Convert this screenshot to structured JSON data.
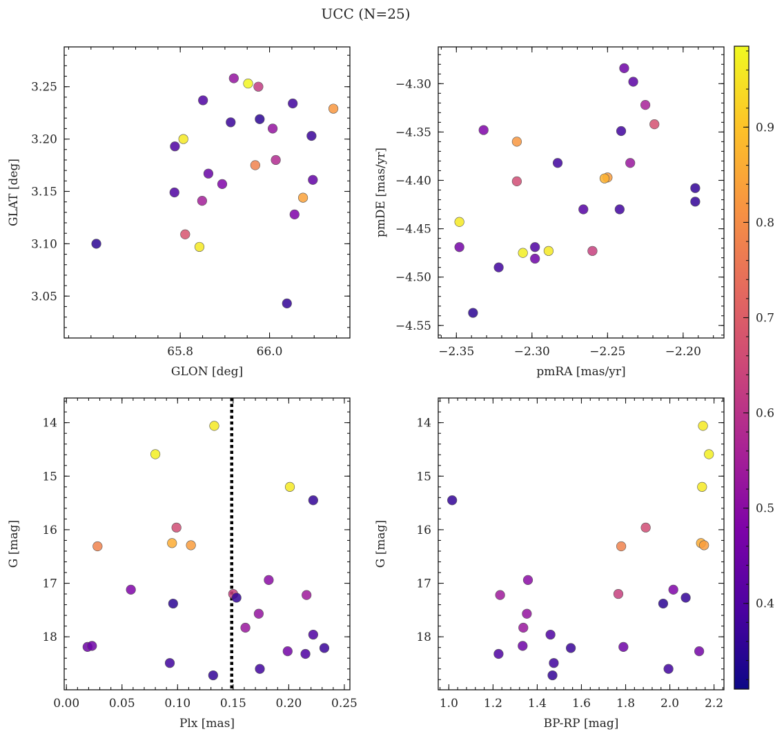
{
  "figure": {
    "title": "UCC (N=25)"
  },
  "colorbar": {
    "min": 0.31,
    "max": 0.985,
    "ticks": [
      "0.4",
      "0.5",
      "0.6",
      "0.7",
      "0.8",
      "0.9"
    ],
    "cmap": "plasma"
  },
  "chart_data": [
    {
      "type": "scatter",
      "xlabel": "GLON [deg]",
      "ylabel": "GLAT [deg]",
      "xlim": [
        65.54,
        66.18
      ],
      "ylim": [
        3.01,
        3.288
      ],
      "xticks": [
        "65.8",
        "66.0"
      ],
      "yticks": [
        "3.05",
        "3.10",
        "3.15",
        "3.20",
        "3.25"
      ],
      "points": [
        {
          "x": 65.612,
          "y": 3.1,
          "c": 0.35
        },
        {
          "x": 65.787,
          "y": 3.149,
          "c": 0.4
        },
        {
          "x": 65.788,
          "y": 3.193,
          "c": 0.4
        },
        {
          "x": 65.807,
          "y": 3.2,
          "c": 0.96
        },
        {
          "x": 65.811,
          "y": 3.109,
          "c": 0.68
        },
        {
          "x": 65.843,
          "y": 3.097,
          "c": 0.96
        },
        {
          "x": 65.849,
          "y": 3.141,
          "c": 0.55
        },
        {
          "x": 65.851,
          "y": 3.237,
          "c": 0.4
        },
        {
          "x": 65.863,
          "y": 3.167,
          "c": 0.44
        },
        {
          "x": 65.894,
          "y": 3.157,
          "c": 0.48
        },
        {
          "x": 65.913,
          "y": 3.216,
          "c": 0.37
        },
        {
          "x": 65.92,
          "y": 3.258,
          "c": 0.52
        },
        {
          "x": 65.952,
          "y": 3.253,
          "c": 0.98
        },
        {
          "x": 65.968,
          "y": 3.175,
          "c": 0.78
        },
        {
          "x": 65.975,
          "y": 3.25,
          "c": 0.62
        },
        {
          "x": 65.978,
          "y": 3.219,
          "c": 0.35
        },
        {
          "x": 66.007,
          "y": 3.21,
          "c": 0.52
        },
        {
          "x": 66.014,
          "y": 3.18,
          "c": 0.58
        },
        {
          "x": 66.039,
          "y": 3.043,
          "c": 0.36
        },
        {
          "x": 66.052,
          "y": 3.234,
          "c": 0.38
        },
        {
          "x": 66.056,
          "y": 3.128,
          "c": 0.48
        },
        {
          "x": 66.075,
          "y": 3.144,
          "c": 0.84
        },
        {
          "x": 66.094,
          "y": 3.203,
          "c": 0.37
        },
        {
          "x": 66.097,
          "y": 3.161,
          "c": 0.43
        },
        {
          "x": 66.143,
          "y": 3.229,
          "c": 0.82
        }
      ]
    },
    {
      "type": "scatter",
      "xlabel": "pmRA [mas/yr]",
      "ylabel": "pmDE [mas/yr]",
      "xlim": [
        -2.362,
        -2.173
      ],
      "ylim": [
        -4.563,
        -4.262
      ],
      "xticks": [
        "−2.35",
        "−2.30",
        "−2.25",
        "−2.20"
      ],
      "yticks": [
        "−4.30",
        "−4.35",
        "−4.40",
        "−4.45",
        "−4.50",
        "−4.55"
      ],
      "points": [
        {
          "x": -2.339,
          "y": -4.537,
          "c": 0.35
        },
        {
          "x": -2.322,
          "y": -4.49,
          "c": 0.38
        },
        {
          "x": -2.348,
          "y": -4.469,
          "c": 0.46
        },
        {
          "x": -2.348,
          "y": -4.443,
          "c": 0.96
        },
        {
          "x": -2.332,
          "y": -4.348,
          "c": 0.48
        },
        {
          "x": -2.31,
          "y": -4.36,
          "c": 0.82
        },
        {
          "x": -2.31,
          "y": -4.401,
          "c": 0.66
        },
        {
          "x": -2.306,
          "y": -4.475,
          "c": 0.97
        },
        {
          "x": -2.298,
          "y": -4.469,
          "c": 0.4
        },
        {
          "x": -2.298,
          "y": -4.481,
          "c": 0.45
        },
        {
          "x": -2.289,
          "y": -4.473,
          "c": 0.96
        },
        {
          "x": -2.283,
          "y": -4.382,
          "c": 0.38
        },
        {
          "x": -2.266,
          "y": -4.43,
          "c": 0.41
        },
        {
          "x": -2.26,
          "y": -4.473,
          "c": 0.63
        },
        {
          "x": -2.25,
          "y": -4.397,
          "c": 0.83
        },
        {
          "x": -2.252,
          "y": -4.398,
          "c": 0.87
        },
        {
          "x": -2.242,
          "y": -4.43,
          "c": 0.38
        },
        {
          "x": -2.241,
          "y": -4.349,
          "c": 0.38
        },
        {
          "x": -2.239,
          "y": -4.284,
          "c": 0.45
        },
        {
          "x": -2.235,
          "y": -4.382,
          "c": 0.53
        },
        {
          "x": -2.233,
          "y": -4.298,
          "c": 0.42
        },
        {
          "x": -2.225,
          "y": -4.322,
          "c": 0.56
        },
        {
          "x": -2.219,
          "y": -4.342,
          "c": 0.67
        },
        {
          "x": -2.192,
          "y": -4.408,
          "c": 0.36
        },
        {
          "x": -2.192,
          "y": -4.422,
          "c": 0.36
        }
      ]
    },
    {
      "type": "scatter",
      "xlabel": "Plx [mas]",
      "ylabel": "G [mag]",
      "xlim": [
        -0.002,
        0.255
      ],
      "ylim": [
        18.99,
        13.54
      ],
      "invert_y": true,
      "xticks": [
        "0.00",
        "0.05",
        "0.10",
        "0.15",
        "0.20",
        "0.25"
      ],
      "yticks": [
        "14",
        "15",
        "16",
        "17",
        "18"
      ],
      "vline": {
        "x": 0.1487,
        "style": "dotted"
      },
      "points": [
        {
          "x": 0.019,
          "y": 18.19,
          "c": 0.45
        },
        {
          "x": 0.023,
          "y": 18.17,
          "c": 0.45
        },
        {
          "x": 0.028,
          "y": 16.31,
          "c": 0.78
        },
        {
          "x": 0.058,
          "y": 17.12,
          "c": 0.48
        },
        {
          "x": 0.08,
          "y": 14.59,
          "c": 0.97
        },
        {
          "x": 0.093,
          "y": 18.49,
          "c": 0.38
        },
        {
          "x": 0.095,
          "y": 16.25,
          "c": 0.86
        },
        {
          "x": 0.096,
          "y": 17.38,
          "c": 0.35
        },
        {
          "x": 0.099,
          "y": 15.96,
          "c": 0.66
        },
        {
          "x": 0.112,
          "y": 16.29,
          "c": 0.83
        },
        {
          "x": 0.132,
          "y": 18.72,
          "c": 0.36
        },
        {
          "x": 0.133,
          "y": 14.06,
          "c": 0.96
        },
        {
          "x": 0.15,
          "y": 17.2,
          "c": 0.63
        },
        {
          "x": 0.153,
          "y": 17.27,
          "c": 0.36
        },
        {
          "x": 0.161,
          "y": 17.83,
          "c": 0.53
        },
        {
          "x": 0.173,
          "y": 17.57,
          "c": 0.52
        },
        {
          "x": 0.174,
          "y": 18.6,
          "c": 0.38
        },
        {
          "x": 0.182,
          "y": 16.94,
          "c": 0.5
        },
        {
          "x": 0.199,
          "y": 18.27,
          "c": 0.46
        },
        {
          "x": 0.201,
          "y": 15.2,
          "c": 0.96
        },
        {
          "x": 0.215,
          "y": 18.32,
          "c": 0.4
        },
        {
          "x": 0.216,
          "y": 17.22,
          "c": 0.54
        },
        {
          "x": 0.222,
          "y": 17.96,
          "c": 0.4
        },
        {
          "x": 0.222,
          "y": 15.45,
          "c": 0.36
        },
        {
          "x": 0.232,
          "y": 18.21,
          "c": 0.37
        }
      ]
    },
    {
      "type": "scatter",
      "xlabel": "BP-RP [mag]",
      "ylabel": "G [mag]",
      "xlim": [
        0.952,
        2.245
      ],
      "ylim": [
        18.99,
        13.54
      ],
      "invert_y": true,
      "xticks": [
        "1.0",
        "1.2",
        "1.4",
        "1.6",
        "1.8",
        "2.0",
        "2.2"
      ],
      "yticks": [
        "14",
        "15",
        "16",
        "17",
        "18"
      ],
      "points": [
        {
          "x": 1.015,
          "y": 15.45,
          "c": 0.36
        },
        {
          "x": 1.225,
          "y": 18.32,
          "c": 0.4
        },
        {
          "x": 1.232,
          "y": 17.22,
          "c": 0.54
        },
        {
          "x": 1.334,
          "y": 18.17,
          "c": 0.45
        },
        {
          "x": 1.337,
          "y": 17.83,
          "c": 0.53
        },
        {
          "x": 1.353,
          "y": 17.57,
          "c": 0.52
        },
        {
          "x": 1.358,
          "y": 16.94,
          "c": 0.5
        },
        {
          "x": 1.46,
          "y": 17.96,
          "c": 0.4
        },
        {
          "x": 1.469,
          "y": 18.72,
          "c": 0.36
        },
        {
          "x": 1.475,
          "y": 18.49,
          "c": 0.38
        },
        {
          "x": 1.552,
          "y": 18.21,
          "c": 0.37
        },
        {
          "x": 1.767,
          "y": 17.2,
          "c": 0.63
        },
        {
          "x": 1.78,
          "y": 16.31,
          "c": 0.78
        },
        {
          "x": 1.79,
          "y": 18.19,
          "c": 0.45
        },
        {
          "x": 1.891,
          "y": 15.96,
          "c": 0.66
        },
        {
          "x": 1.97,
          "y": 17.38,
          "c": 0.35
        },
        {
          "x": 1.994,
          "y": 18.6,
          "c": 0.38
        },
        {
          "x": 2.016,
          "y": 17.12,
          "c": 0.48
        },
        {
          "x": 2.072,
          "y": 17.27,
          "c": 0.36
        },
        {
          "x": 2.133,
          "y": 18.27,
          "c": 0.46
        },
        {
          "x": 2.141,
          "y": 16.25,
          "c": 0.86
        },
        {
          "x": 2.146,
          "y": 15.2,
          "c": 0.96
        },
        {
          "x": 2.15,
          "y": 14.06,
          "c": 0.96
        },
        {
          "x": 2.155,
          "y": 16.29,
          "c": 0.83
        },
        {
          "x": 2.177,
          "y": 14.59,
          "c": 0.97
        }
      ]
    }
  ]
}
